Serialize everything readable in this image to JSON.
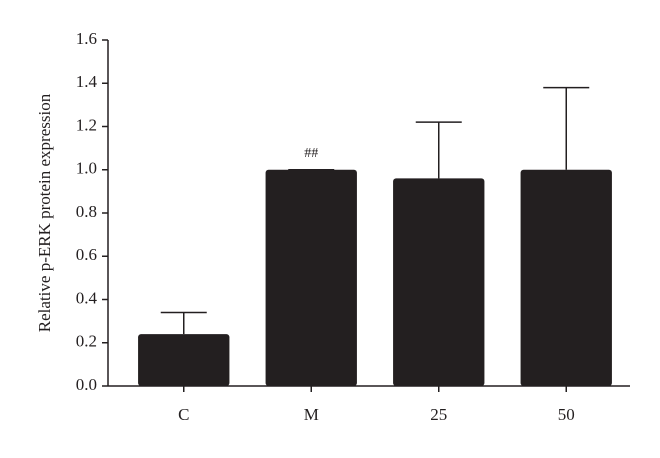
{
  "chart_data": {
    "type": "bar",
    "y_label": "Relative p-ERK protein expression",
    "categories": [
      "C",
      "M",
      "25",
      "50"
    ],
    "values": [
      0.24,
      1.0,
      0.96,
      1.0
    ],
    "errors": [
      0.1,
      0,
      0.26,
      0.38
    ],
    "color": "#231f20",
    "annotations": [
      {
        "text": "##",
        "category": "M"
      }
    ],
    "ylim": [
      0,
      1.6
    ],
    "yticks": [
      {
        "value": 0,
        "label": "0.0"
      },
      0.2,
      0.4,
      0.6,
      0.8,
      {
        "value": 1,
        "label": "1.0"
      },
      1.2,
      1.4,
      1.6
    ]
  }
}
